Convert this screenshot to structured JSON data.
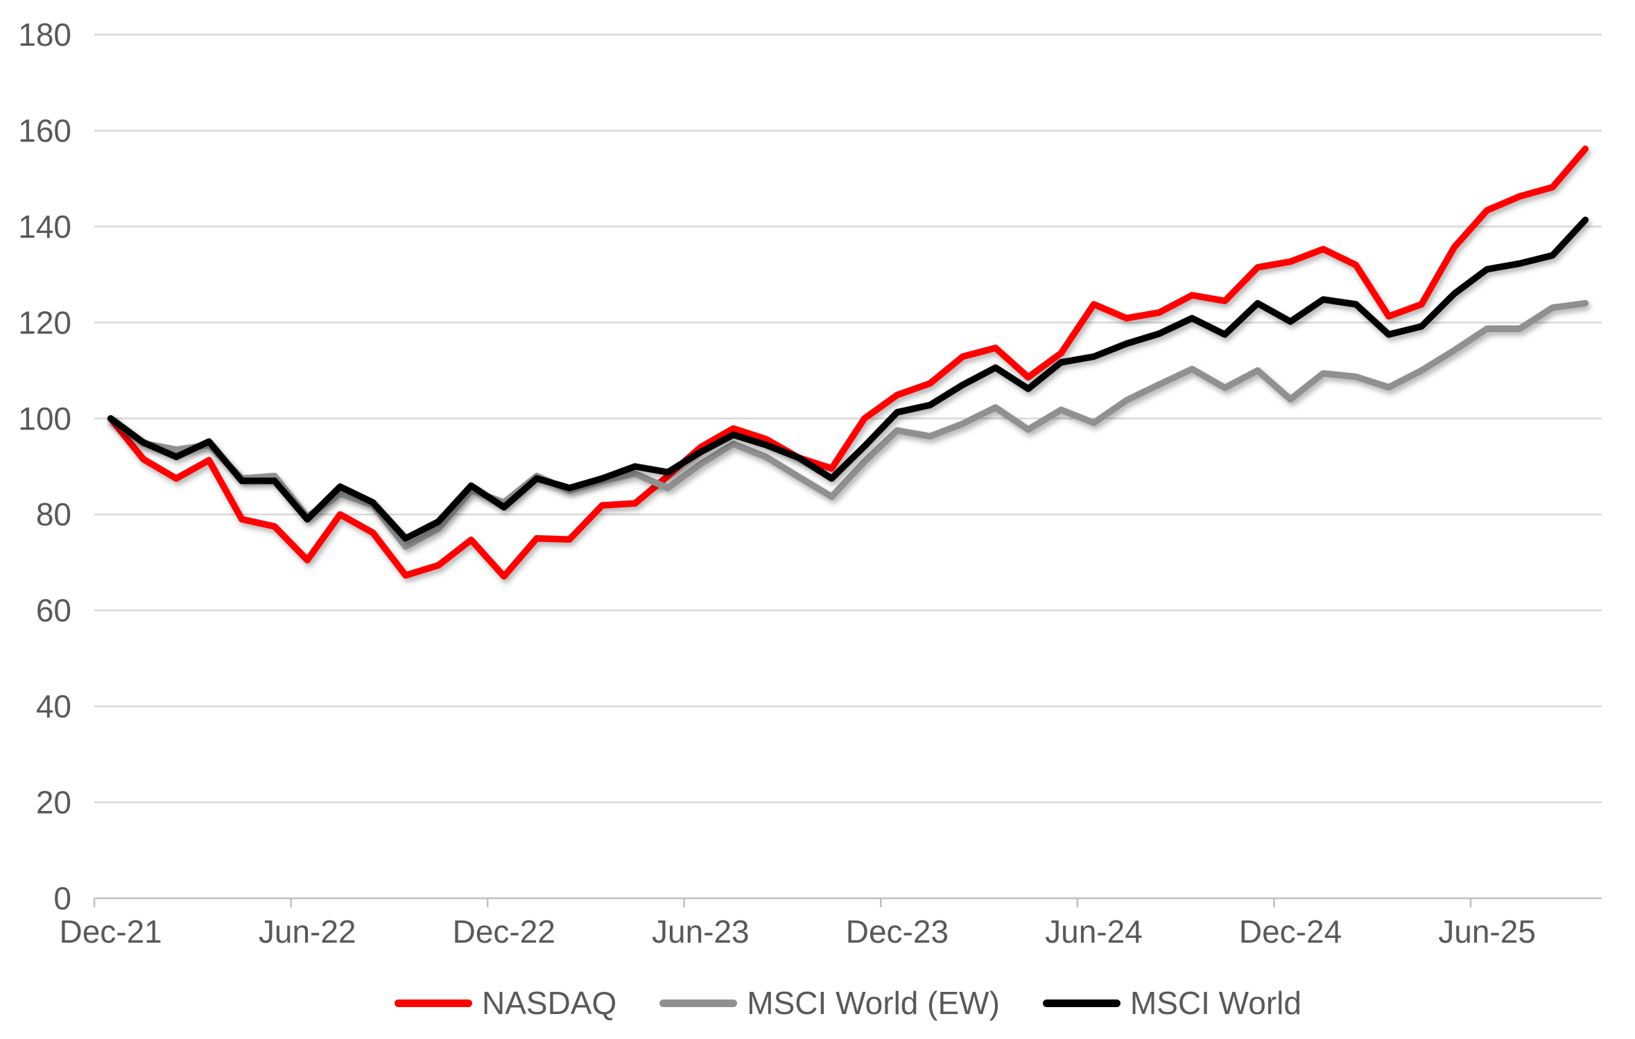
{
  "page": {
    "background": "#FFFFFF",
    "title": ""
  },
  "chart_data": {
    "type": "line",
    "title": "",
    "xlabel": "",
    "ylabel": "",
    "x": [
      "Dec-21",
      "Jan-22",
      "Feb-22",
      "Mar-22",
      "Apr-22",
      "May-22",
      "Jun-22",
      "Jul-22",
      "Aug-22",
      "Sep-22",
      "Oct-22",
      "Nov-22",
      "Dec-22",
      "Jan-23",
      "Feb-23",
      "Mar-23",
      "Apr-23",
      "May-23",
      "Jun-23",
      "Jul-23",
      "Aug-23",
      "Sep-23",
      "Oct-23",
      "Nov-23",
      "Dec-23",
      "Jan-24",
      "Feb-24",
      "Mar-24",
      "Apr-24",
      "May-24",
      "Jun-24",
      "Jul-24",
      "Aug-24",
      "Sep-24",
      "Oct-24",
      "Nov-24",
      "Dec-24",
      "Jan-25",
      "Feb-25",
      "Mar-25",
      "Apr-25",
      "May-25",
      "Jun-25",
      "Jul-25",
      "Aug-25",
      "Sep-25"
    ],
    "series": [
      {
        "name": "NASDAQ",
        "color": "#FF0000",
        "values": [
          100,
          91.5,
          87.5,
          91.3,
          79,
          77.5,
          70.5,
          80,
          76.2,
          67.3,
          69.4,
          74.7,
          67.1,
          75,
          74.8,
          81.9,
          82.3,
          88,
          94,
          97.9,
          95.7,
          91.8,
          89.6,
          100,
          104.9,
          107.3,
          112.9,
          114.7,
          108.6,
          113.6,
          123.8,
          120.9,
          122.1,
          125.7,
          124.5,
          131.5,
          132.7,
          135.3,
          132,
          121.3,
          123.8,
          135.7,
          143.4,
          146.3,
          148.2,
          156.2
        ]
      },
      {
        "name": "MSCI World (EW)",
        "color": "#909090",
        "values": [
          100,
          94.8,
          93.5,
          94.5,
          87.5,
          88,
          79.5,
          84.3,
          82,
          73.3,
          77,
          85,
          82.5,
          88,
          85,
          87,
          88.5,
          85.5,
          90.5,
          94.7,
          92,
          87.8,
          83.7,
          91,
          97.5,
          96.3,
          98.9,
          102.3,
          97.7,
          101.8,
          99.1,
          103.8,
          107.1,
          110.3,
          106.4,
          110,
          104,
          109.4,
          108.7,
          106.5,
          110,
          114.2,
          118.7,
          118.7,
          123.1,
          124
        ]
      },
      {
        "name": "MSCI World",
        "color": "#000000",
        "values": [
          100,
          95,
          92,
          95.2,
          87,
          87,
          79,
          85.8,
          82.5,
          75,
          78.5,
          86,
          81.5,
          87.5,
          85.5,
          87.5,
          90,
          88.8,
          93,
          96.6,
          94.5,
          91.8,
          87.5,
          94.2,
          101.3,
          102.8,
          107,
          110.6,
          106.2,
          111.7,
          112.9,
          115.6,
          117.7,
          120.9,
          117.5,
          124,
          120.2,
          124.8,
          123.8,
          117.5,
          119.2,
          126,
          131.1,
          132.3,
          134,
          141.4
        ]
      }
    ],
    "ylim": [
      0,
      180
    ],
    "y_ticks": [
      0,
      20,
      40,
      60,
      80,
      100,
      120,
      140,
      160,
      180
    ],
    "x_tick_labels": [
      "Dec-21",
      "Jun-22",
      "Dec-22",
      "Jun-23",
      "Dec-23",
      "Jun-24",
      "Dec-24",
      "Jun-25"
    ],
    "x_tick_every": 6,
    "grid": "horizontal",
    "legend_position": "bottom",
    "colors": {
      "gridline": "#D9D9D9",
      "axis_line": "#BFBFBF",
      "tick_text": "#595959",
      "background": "#FFFFFF"
    }
  }
}
